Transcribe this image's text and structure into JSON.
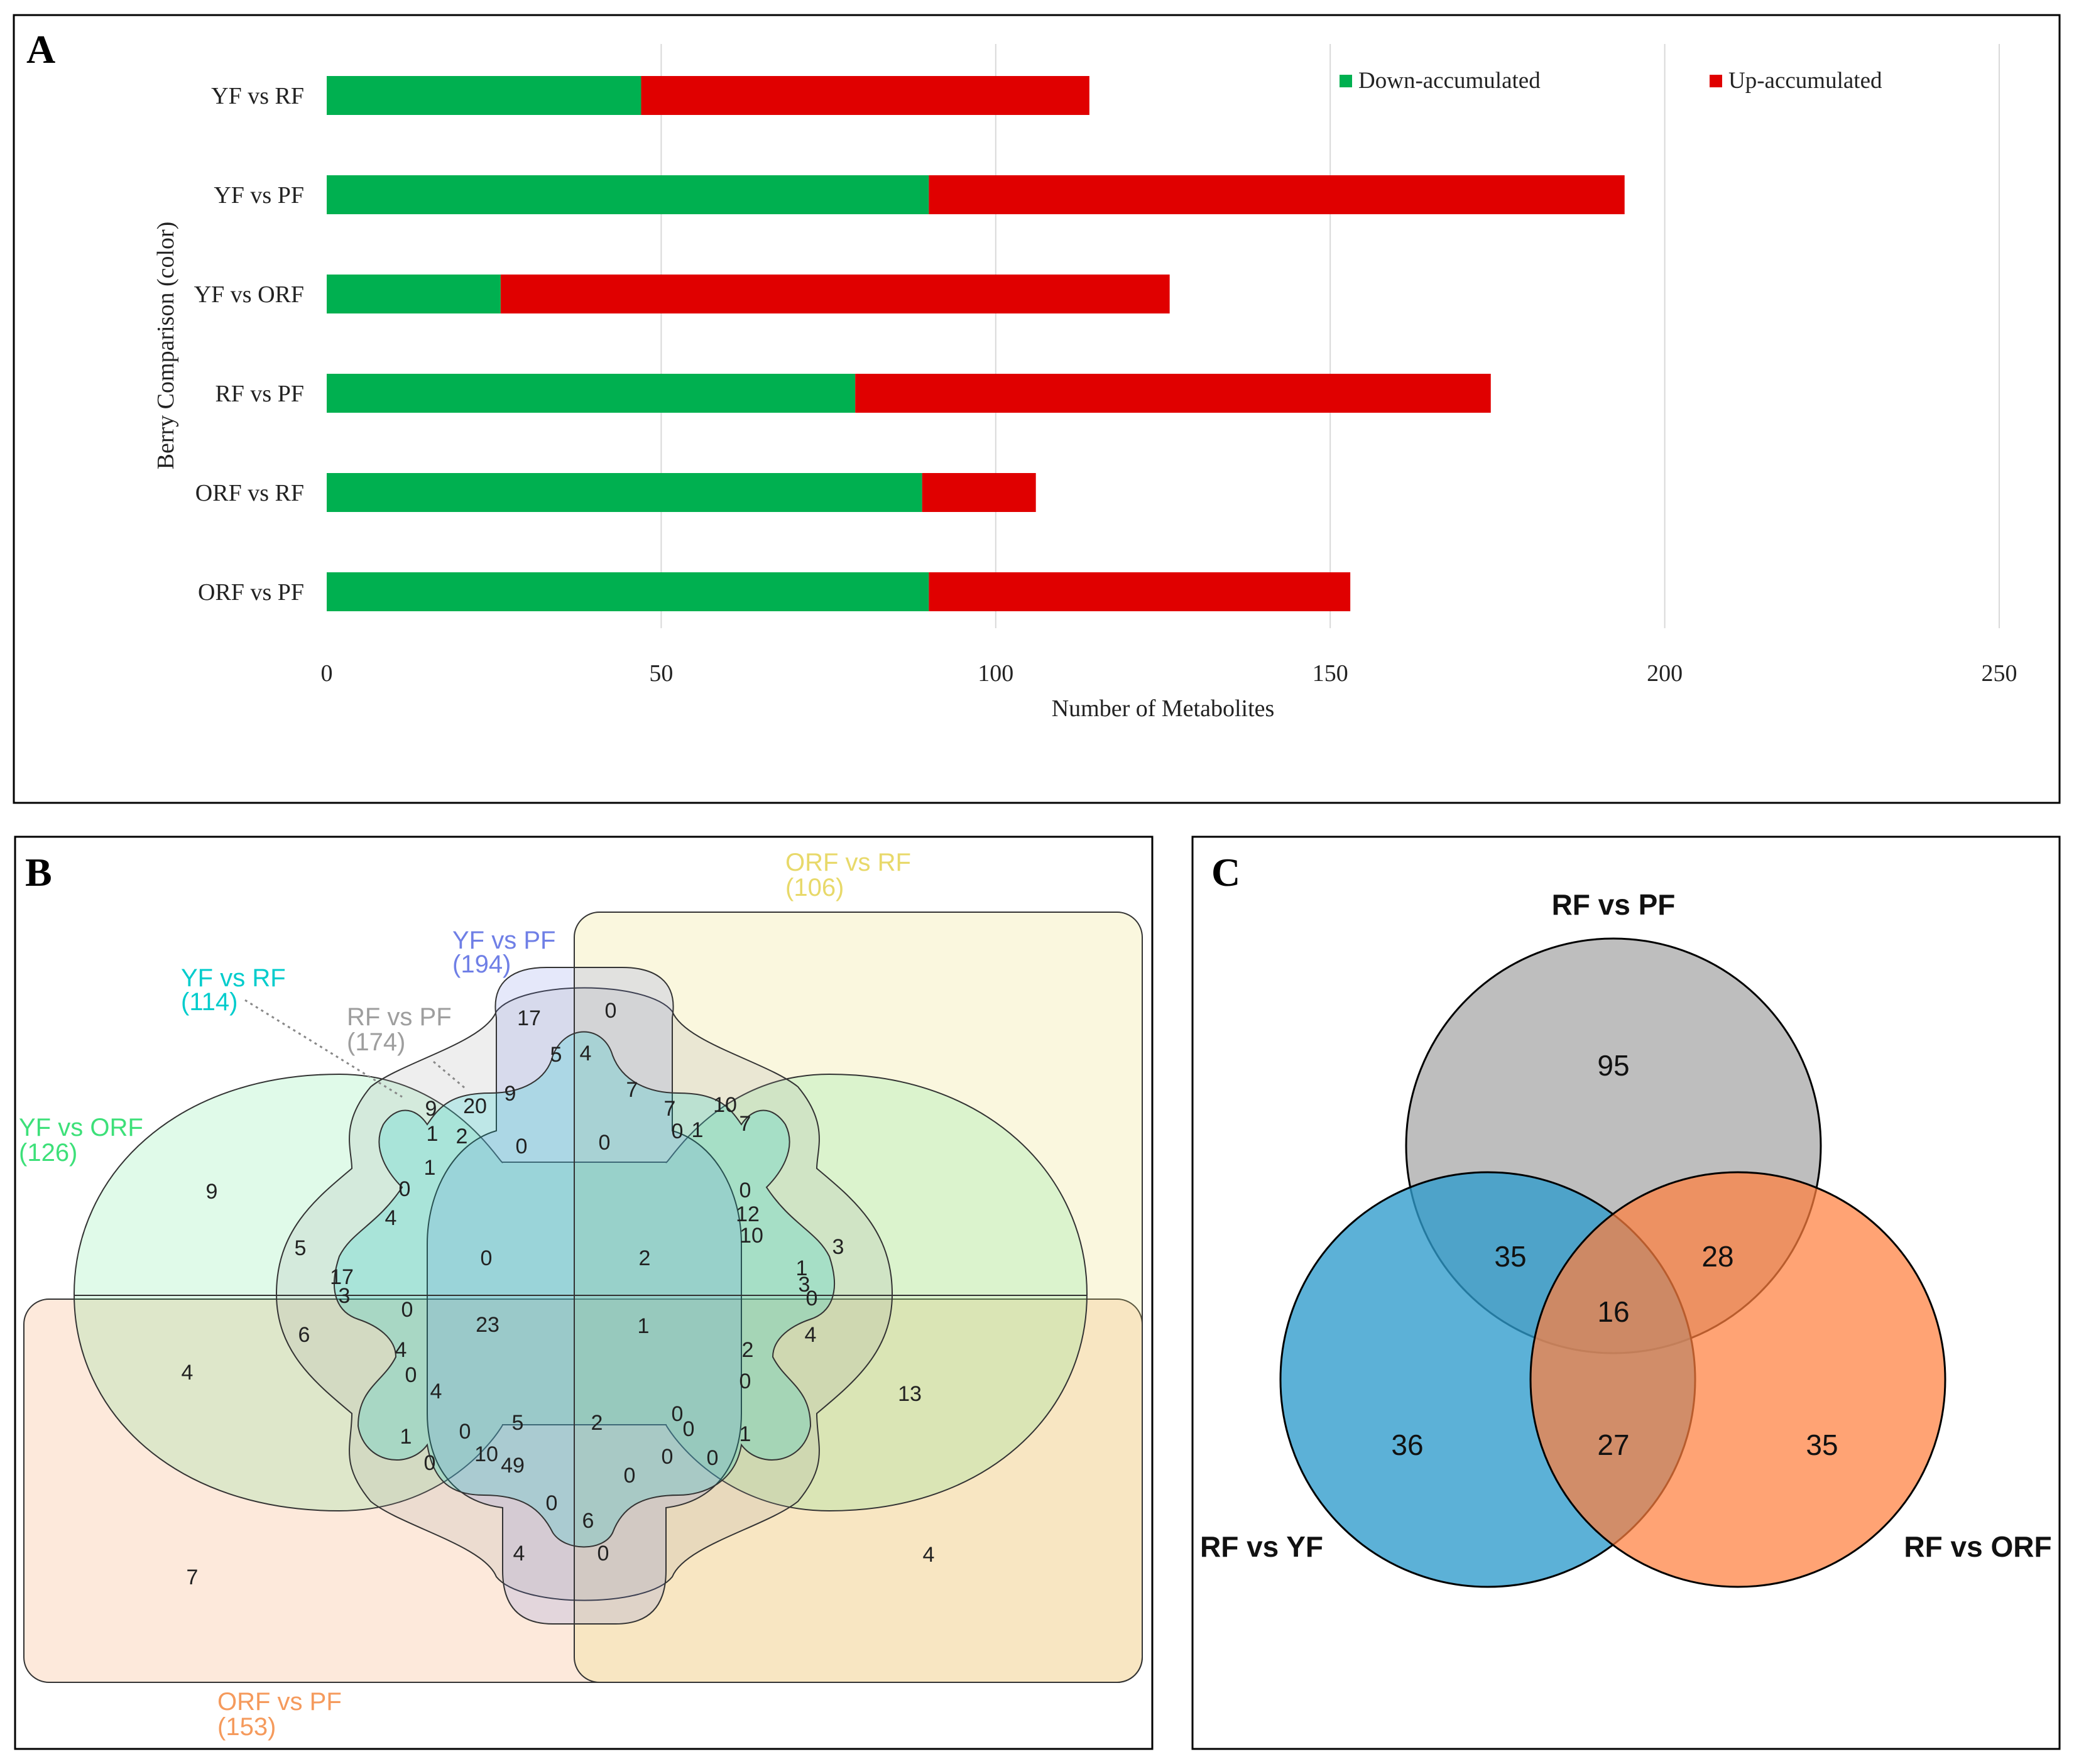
{
  "colors": {
    "down": "#00B050",
    "up": "#E00000",
    "grid": "#D9D9D9",
    "yf_vs_rf": "#00CCCC",
    "yf_vs_pf": "#6F7FE6",
    "rf_vs_pf": "#9E9E9E",
    "yf_vs_orf": "#3DE079",
    "orf_vs_rf": "#E8D96A",
    "orf_vs_pf": "#F59A5C",
    "c_top": "#B3B3B3",
    "c_left": "#2E9BCC",
    "c_right": "#FF7F3F"
  },
  "panels": {
    "a": {
      "letter": "A"
    },
    "b": {
      "letter": "B"
    },
    "c": {
      "letter": "C"
    }
  },
  "chart_data": [
    {
      "type": "bar",
      "orientation": "horizontal",
      "stacked": true,
      "categories": [
        "YF vs RF",
        "YF vs PF",
        "YF vs ORF",
        "RF vs PF",
        "ORF vs RF",
        "ORF vs PF"
      ],
      "series": [
        {
          "name": "Down-accumulated",
          "values": [
            47,
            90,
            26,
            79,
            89,
            90
          ]
        },
        {
          "name": "Up-accumulated",
          "values": [
            67,
            104,
            100,
            95,
            17,
            63
          ]
        }
      ],
      "xlabel": "Number of Metabolites",
      "ylabel": "Berry Comparison (color)",
      "xlim": [
        0,
        250
      ],
      "xticks": [
        "0",
        "50",
        "100",
        "150",
        "200",
        "250"
      ],
      "grid": "vertical",
      "legend": "top-right"
    },
    {
      "type": "venn",
      "sets": [
        {
          "label": "YF vs RF",
          "count": "(114)"
        },
        {
          "label": "YF vs PF",
          "count": "(194)"
        },
        {
          "label": "RF vs PF",
          "count": "(174)"
        },
        {
          "label": "YF vs ORF",
          "count": "(126)"
        },
        {
          "label": "ORF vs RF",
          "count": "(106)"
        },
        {
          "label": "ORF vs PF",
          "count": "(153)"
        }
      ],
      "region_values": [
        "17",
        "0",
        "5",
        "4",
        "9",
        "20",
        "9",
        "7",
        "7",
        "10",
        "7",
        "0",
        "1",
        "2",
        "0",
        "0",
        "1",
        "1",
        "0",
        "0",
        "12",
        "10",
        "4",
        "9",
        "3",
        "5",
        "1",
        "0",
        "2",
        "17",
        "3",
        "3",
        "6",
        "0",
        "0",
        "23",
        "1",
        "4",
        "4",
        "4",
        "2",
        "0",
        "0",
        "4",
        "13",
        "1",
        "0",
        "5",
        "2",
        "0",
        "0",
        "1",
        "10",
        "49",
        "0",
        "0",
        "0",
        "0",
        "0",
        "6",
        "7",
        "4",
        "0",
        "4"
      ]
    },
    {
      "type": "venn",
      "sets": [
        {
          "label": "RF vs PF",
          "only": 95
        },
        {
          "label": "RF vs YF",
          "only": 36
        },
        {
          "label": "RF vs ORF",
          "only": 35
        }
      ],
      "intersections": {
        "rfpf_rfyf": 35,
        "rfpf_rforf": 28,
        "rfyf_rforf": 27,
        "all": 16
      }
    }
  ]
}
